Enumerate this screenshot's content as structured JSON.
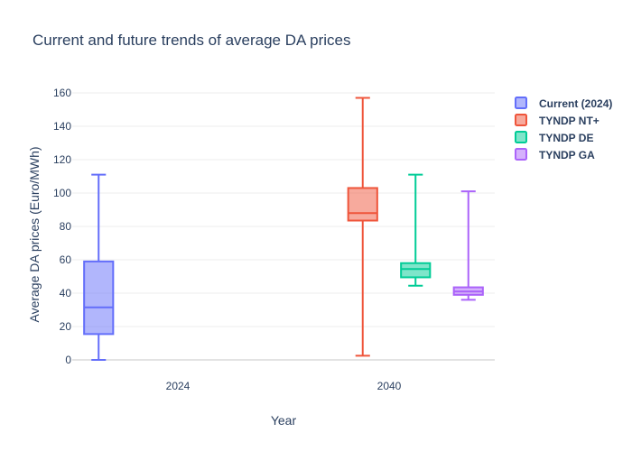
{
  "chart_data": {
    "type": "box",
    "title": "Current and future trends of average DA prices",
    "xlabel": "Year",
    "ylabel": "Average DA prices (Euro/MWh)",
    "categories": [
      "2024",
      "2040"
    ],
    "ylim": [
      -7,
      167
    ],
    "yticks": [
      0,
      20,
      40,
      60,
      80,
      100,
      120,
      140,
      160
    ],
    "grid": true,
    "legend_position": "top-right",
    "series": [
      {
        "name": "Current (2024)",
        "category": "2024",
        "color": "#636efa",
        "min": 0,
        "q1": 15.5,
        "median": 31.5,
        "q3": 59,
        "max": 111
      },
      {
        "name": "TYNDP NT+",
        "category": "2040",
        "color": "#ef553b",
        "min": 2.5,
        "q1": 83.5,
        "median": 88,
        "q3": 103,
        "max": 157
      },
      {
        "name": "TYNDP DE",
        "category": "2040",
        "color": "#00cc96",
        "min": 44.5,
        "q1": 49.5,
        "median": 54.5,
        "q3": 58,
        "max": 111
      },
      {
        "name": "TYNDP GA",
        "category": "2040",
        "color": "#ab63fa",
        "min": 36,
        "q1": 39,
        "median": 41,
        "q3": 43.5,
        "max": 101
      }
    ]
  }
}
